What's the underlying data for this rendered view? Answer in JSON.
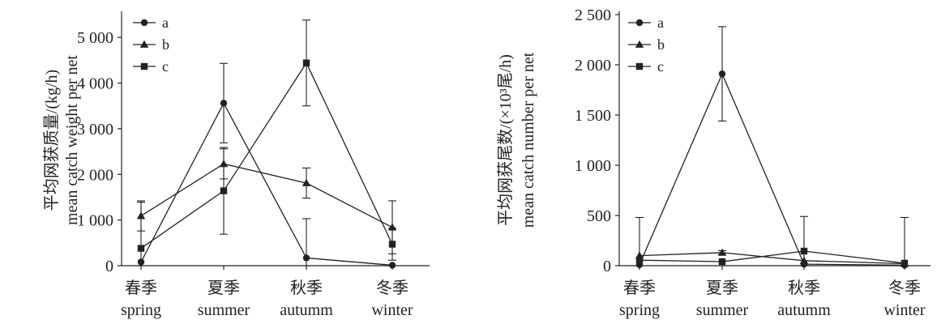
{
  "chart_data": [
    {
      "type": "line",
      "ylabel_cn": "平均网获质量/(kg/h)",
      "ylabel_en": "mean catch weight per net",
      "categories_cn": [
        "春季",
        "夏季",
        "秋季",
        "冬季"
      ],
      "categories_en": [
        "spring",
        "summer",
        "autumm",
        "winter"
      ],
      "ylim": [
        0,
        5500
      ],
      "yticks": [
        0,
        1000,
        2000,
        3000,
        4000,
        5000
      ],
      "ytick_labels": [
        "0",
        "1 000",
        "2 000",
        "3 000",
        "4 000",
        "5 000"
      ],
      "legend_position": "top-left",
      "series": [
        {
          "name": "a",
          "marker": "circle",
          "values": [
            80,
            3560,
            170,
            10
          ],
          "err": [
            0,
            870,
            860,
            0
          ]
        },
        {
          "name": "b",
          "marker": "triangle",
          "values": [
            1090,
            2230,
            1810,
            840
          ],
          "err": [
            330,
            330,
            330,
            580
          ]
        },
        {
          "name": "c",
          "marker": "square",
          "values": [
            380,
            1640,
            4440,
            470
          ],
          "err": [
            1010,
            950,
            940,
            350
          ]
        }
      ]
    },
    {
      "type": "line",
      "ylabel_cn": "平均网获尾数/(×10³尾/h)",
      "ylabel_en": "mean catch number per net",
      "categories_cn": [
        "春季",
        "夏季",
        "秋季",
        "冬季"
      ],
      "categories_en": [
        "spring",
        "summer",
        "autumm",
        "winter"
      ],
      "ylim": [
        0,
        2500
      ],
      "yticks": [
        0,
        500,
        1000,
        1500,
        2000,
        2500
      ],
      "ytick_labels": [
        "0",
        "500",
        "1 000",
        "1 500",
        "2 000",
        "2 500"
      ],
      "legend_position": "top-left",
      "series": [
        {
          "name": "a",
          "marker": "circle",
          "values": [
            10,
            1910,
            15,
            5
          ],
          "err": [
            0,
            470,
            0,
            0
          ]
        },
        {
          "name": "b",
          "marker": "triangle",
          "values": [
            100,
            130,
            50,
            20
          ],
          "err": [
            380,
            20,
            440,
            460
          ]
        },
        {
          "name": "c",
          "marker": "square",
          "values": [
            55,
            40,
            145,
            25
          ],
          "err": [
            0,
            0,
            0,
            0
          ]
        }
      ]
    }
  ]
}
